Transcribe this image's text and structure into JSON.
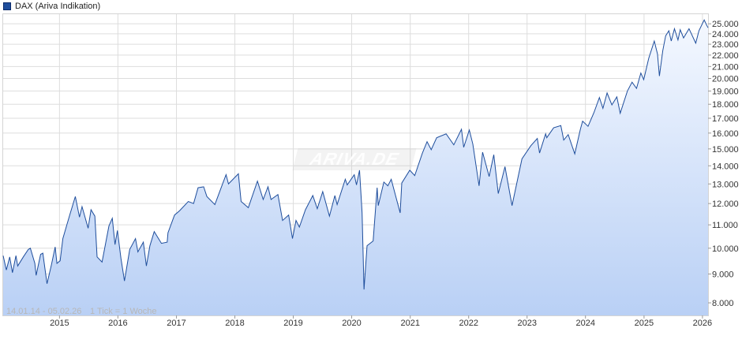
{
  "legend": {
    "label": "DAX (Ariva Indikation)",
    "color": "#1f4e9c"
  },
  "watermark": "ARIVA.DE",
  "footer": {
    "range": "14.01.14 - 05.02.26",
    "tick": "1 Tick = 1 Woche"
  },
  "colors": {
    "line": "#1f4e9c",
    "fill_top": "#f4f8ff",
    "fill_bottom": "#b9d0f5",
    "grid": "#dddddd"
  },
  "chart_data": {
    "type": "area",
    "title": "",
    "xlabel": "",
    "ylabel": "",
    "y_scale": "log",
    "grid": true,
    "ylim": [
      7600,
      26000
    ],
    "xlim": [
      "2014-01-14",
      "2026-02-05"
    ],
    "y_ticks": [
      {
        "value": 8000,
        "label": "8.000"
      },
      {
        "value": 9000,
        "label": "9.000"
      },
      {
        "value": 10000,
        "label": "10.000"
      },
      {
        "value": 11000,
        "label": "11.000"
      },
      {
        "value": 12000,
        "label": "12.000"
      },
      {
        "value": 13000,
        "label": "13.000"
      },
      {
        "value": 14000,
        "label": "14.000"
      },
      {
        "value": 15000,
        "label": "15.000"
      },
      {
        "value": 16000,
        "label": "16.000"
      },
      {
        "value": 17000,
        "label": "17.000"
      },
      {
        "value": 18000,
        "label": "18.000"
      },
      {
        "value": 19000,
        "label": "19.000"
      },
      {
        "value": 20000,
        "label": "20.000"
      },
      {
        "value": 21000,
        "label": "21.000"
      },
      {
        "value": 22000,
        "label": "22.000"
      },
      {
        "value": 23000,
        "label": "23.000"
      },
      {
        "value": 24000,
        "label": "24.000"
      },
      {
        "value": 25000,
        "label": "25.000"
      }
    ],
    "x_ticks": [
      {
        "date": "2015-01-01",
        "label": "2015"
      },
      {
        "date": "2016-01-01",
        "label": "2016"
      },
      {
        "date": "2017-01-01",
        "label": "2017"
      },
      {
        "date": "2018-01-01",
        "label": "2018"
      },
      {
        "date": "2019-01-01",
        "label": "2019"
      },
      {
        "date": "2020-01-01",
        "label": "2020"
      },
      {
        "date": "2021-01-01",
        "label": "2021"
      },
      {
        "date": "2022-01-01",
        "label": "2022"
      },
      {
        "date": "2023-01-01",
        "label": "2023"
      },
      {
        "date": "2024-01-01",
        "label": "2024"
      },
      {
        "date": "2025-01-01",
        "label": "2025"
      },
      {
        "date": "2026-01-01",
        "label": "2026"
      }
    ],
    "series": [
      {
        "name": "DAX (Ariva Indikation)",
        "points": [
          [
            "2014-01-14",
            9700
          ],
          [
            "2014-02-03",
            9150
          ],
          [
            "2014-02-24",
            9650
          ],
          [
            "2014-03-13",
            9050
          ],
          [
            "2014-04-04",
            9700
          ],
          [
            "2014-04-15",
            9300
          ],
          [
            "2014-05-20",
            9650
          ],
          [
            "2014-06-20",
            9950
          ],
          [
            "2014-07-03",
            10000
          ],
          [
            "2014-07-31",
            9400
          ],
          [
            "2014-08-08",
            8950
          ],
          [
            "2014-09-05",
            9750
          ],
          [
            "2014-09-19",
            9800
          ],
          [
            "2014-10-15",
            8650
          ],
          [
            "2014-11-10",
            9300
          ],
          [
            "2014-12-05",
            10050
          ],
          [
            "2014-12-16",
            9400
          ],
          [
            "2015-01-05",
            9500
          ],
          [
            "2015-01-22",
            10400
          ],
          [
            "2015-02-16",
            11000
          ],
          [
            "2015-03-10",
            11550
          ],
          [
            "2015-04-10",
            12350
          ],
          [
            "2015-05-06",
            11350
          ],
          [
            "2015-05-22",
            11850
          ],
          [
            "2015-06-29",
            10850
          ],
          [
            "2015-07-17",
            11700
          ],
          [
            "2015-08-10",
            11400
          ],
          [
            "2015-08-24",
            9650
          ],
          [
            "2015-09-24",
            9450
          ],
          [
            "2015-11-06",
            10950
          ],
          [
            "2015-11-27",
            11300
          ],
          [
            "2015-12-14",
            10150
          ],
          [
            "2015-12-29",
            10750
          ],
          [
            "2016-01-20",
            9600
          ],
          [
            "2016-02-11",
            8750
          ],
          [
            "2016-03-15",
            9950
          ],
          [
            "2016-04-20",
            10400
          ],
          [
            "2016-05-05",
            9850
          ],
          [
            "2016-06-08",
            10250
          ],
          [
            "2016-06-27",
            9300
          ],
          [
            "2016-07-19",
            10100
          ],
          [
            "2016-08-15",
            10700
          ],
          [
            "2016-09-29",
            10200
          ],
          [
            "2016-11-04",
            10250
          ],
          [
            "2016-11-09",
            10650
          ],
          [
            "2016-12-20",
            11450
          ],
          [
            "2017-01-20",
            11650
          ],
          [
            "2017-03-16",
            12100
          ],
          [
            "2017-04-18",
            12000
          ],
          [
            "2017-05-16",
            12800
          ],
          [
            "2017-06-20",
            12850
          ],
          [
            "2017-07-10",
            12350
          ],
          [
            "2017-08-29",
            11950
          ],
          [
            "2017-10-16",
            13000
          ],
          [
            "2017-11-07",
            13500
          ],
          [
            "2017-11-22",
            13000
          ],
          [
            "2018-01-23",
            13550
          ],
          [
            "2018-02-09",
            12100
          ],
          [
            "2018-03-26",
            11800
          ],
          [
            "2018-05-22",
            13150
          ],
          [
            "2018-06-27",
            12200
          ],
          [
            "2018-07-27",
            12850
          ],
          [
            "2018-08-15",
            12200
          ],
          [
            "2018-09-27",
            12450
          ],
          [
            "2018-10-26",
            11200
          ],
          [
            "2018-12-03",
            11450
          ],
          [
            "2018-12-27",
            10400
          ],
          [
            "2019-01-18",
            11200
          ],
          [
            "2019-02-08",
            10900
          ],
          [
            "2019-03-18",
            11700
          ],
          [
            "2019-05-03",
            12400
          ],
          [
            "2019-05-31",
            11750
          ],
          [
            "2019-07-04",
            12600
          ],
          [
            "2019-08-15",
            11400
          ],
          [
            "2019-09-18",
            12400
          ],
          [
            "2019-10-02",
            11950
          ],
          [
            "2019-11-22",
            13250
          ],
          [
            "2019-12-04",
            12950
          ],
          [
            "2020-01-17",
            13500
          ],
          [
            "2020-01-31",
            12950
          ],
          [
            "2020-02-19",
            13750
          ],
          [
            "2020-03-06",
            11550
          ],
          [
            "2020-03-18",
            8450
          ],
          [
            "2020-04-06",
            10100
          ],
          [
            "2020-05-14",
            10300
          ],
          [
            "2020-06-08",
            12800
          ],
          [
            "2020-06-15",
            11900
          ],
          [
            "2020-07-20",
            13100
          ],
          [
            "2020-08-14",
            12900
          ],
          [
            "2020-09-04",
            13250
          ],
          [
            "2020-10-30",
            11550
          ],
          [
            "2020-11-09",
            13050
          ],
          [
            "2020-12-29",
            13750
          ],
          [
            "2021-01-29",
            13450
          ],
          [
            "2021-03-18",
            14750
          ],
          [
            "2021-04-16",
            15450
          ],
          [
            "2021-05-12",
            14950
          ],
          [
            "2021-06-15",
            15700
          ],
          [
            "2021-08-13",
            15950
          ],
          [
            "2021-09-30",
            15250
          ],
          [
            "2021-11-17",
            16250
          ],
          [
            "2021-12-01",
            15100
          ],
          [
            "2022-01-05",
            16200
          ],
          [
            "2022-01-27",
            15300
          ],
          [
            "2022-03-07",
            12900
          ],
          [
            "2022-03-29",
            14800
          ],
          [
            "2022-05-09",
            13400
          ],
          [
            "2022-06-07",
            14650
          ],
          [
            "2022-07-05",
            12500
          ],
          [
            "2022-08-16",
            13950
          ],
          [
            "2022-09-29",
            11900
          ],
          [
            "2022-11-30",
            14400
          ],
          [
            "2023-01-25",
            15200
          ],
          [
            "2023-03-06",
            15650
          ],
          [
            "2023-03-20",
            14750
          ],
          [
            "2023-04-27",
            15950
          ],
          [
            "2023-05-04",
            15700
          ],
          [
            "2023-06-16",
            16350
          ],
          [
            "2023-07-31",
            16500
          ],
          [
            "2023-08-18",
            15550
          ],
          [
            "2023-09-15",
            15900
          ],
          [
            "2023-10-26",
            14700
          ],
          [
            "2023-11-30",
            16250
          ],
          [
            "2023-12-14",
            16800
          ],
          [
            "2024-01-17",
            16450
          ],
          [
            "2024-02-23",
            17400
          ],
          [
            "2024-03-28",
            18500
          ],
          [
            "2024-04-19",
            17700
          ],
          [
            "2024-05-15",
            18850
          ],
          [
            "2024-06-14",
            17950
          ],
          [
            "2024-07-15",
            18550
          ],
          [
            "2024-08-05",
            17350
          ],
          [
            "2024-09-19",
            19000
          ],
          [
            "2024-10-18",
            19700
          ],
          [
            "2024-11-15",
            19200
          ],
          [
            "2024-12-12",
            20450
          ],
          [
            "2024-12-30",
            19900
          ],
          [
            "2025-01-30",
            21700
          ],
          [
            "2025-03-06",
            23300
          ],
          [
            "2025-03-26",
            22100
          ],
          [
            "2025-04-07",
            20200
          ],
          [
            "2025-04-28",
            22400
          ],
          [
            "2025-05-16",
            23800
          ],
          [
            "2025-06-05",
            24300
          ],
          [
            "2025-06-20",
            23300
          ],
          [
            "2025-07-10",
            24500
          ],
          [
            "2025-08-01",
            23400
          ],
          [
            "2025-08-15",
            24400
          ],
          [
            "2025-09-05",
            23600
          ],
          [
            "2025-10-09",
            24500
          ],
          [
            "2025-11-20",
            23100
          ],
          [
            "2025-12-10",
            24300
          ],
          [
            "2026-01-12",
            25400
          ],
          [
            "2026-01-26",
            24900
          ],
          [
            "2026-02-05",
            24600
          ]
        ]
      }
    ]
  }
}
